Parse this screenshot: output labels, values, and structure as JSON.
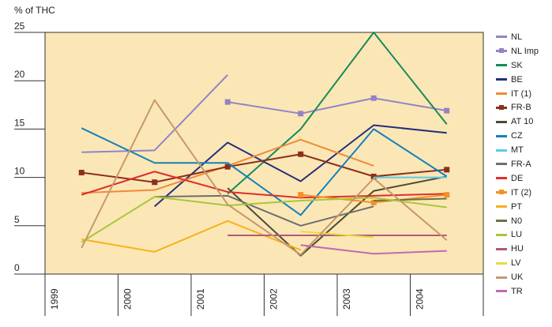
{
  "chart_data": {
    "type": "line",
    "title": "",
    "ylabel": "% of THC",
    "xlabel": "",
    "ylim": [
      0,
      25
    ],
    "yticks": [
      0,
      5,
      10,
      15,
      20,
      25
    ],
    "ytick_labels": [
      "0",
      "5",
      "10",
      "15",
      "20",
      "25"
    ],
    "categories": [
      "1999",
      "2000",
      "2001",
      "2002",
      "2003",
      "2004"
    ],
    "x_positions": [
      1999.5,
      2000.5,
      2001.5,
      2002.5,
      2003.5,
      2004.5
    ],
    "background": "#fbe7b5",
    "grid": false,
    "legend_position": "right",
    "series": [
      {
        "name": "NL",
        "color": "#9482c8",
        "marker": false,
        "values": [
          12.6,
          12.8,
          20.6,
          null,
          null,
          null
        ]
      },
      {
        "name": "NL Imp",
        "color": "#9482c8",
        "marker": true,
        "values": [
          null,
          null,
          17.8,
          16.6,
          18.2,
          16.9
        ]
      },
      {
        "name": "SK",
        "color": "#158a5c",
        "marker": false,
        "values": [
          null,
          null,
          8.3,
          15.0,
          25.0,
          15.5
        ]
      },
      {
        "name": "BE",
        "color": "#262e7e",
        "marker": false,
        "values": [
          null,
          7.0,
          13.6,
          9.6,
          15.4,
          14.6
        ]
      },
      {
        "name": "IT (1)",
        "color": "#f08a38",
        "marker": false,
        "values": [
          8.4,
          8.7,
          11.2,
          13.9,
          11.2,
          null
        ]
      },
      {
        "name": "FR-B",
        "color": "#8b2f1d",
        "marker": true,
        "values": [
          10.5,
          9.5,
          11.1,
          12.4,
          10.1,
          10.8
        ]
      },
      {
        "name": "AT 10",
        "color": "#4c4c35",
        "marker": false,
        "values": [
          null,
          null,
          8.9,
          1.9,
          8.6,
          10.1
        ]
      },
      {
        "name": "CZ",
        "color": "#1381bc",
        "marker": false,
        "values": [
          15.1,
          11.5,
          11.5,
          6.1,
          15.0,
          10.1
        ]
      },
      {
        "name": "MT",
        "color": "#5ccae8",
        "marker": false,
        "values": [
          null,
          null,
          null,
          null,
          10.0,
          10.0
        ]
      },
      {
        "name": "FR-A",
        "color": "#6e6e6e",
        "marker": false,
        "values": [
          null,
          8.0,
          8.1,
          5.0,
          7.0,
          null
        ]
      },
      {
        "name": "DE",
        "color": "#e02d2c",
        "marker": false,
        "values": [
          8.2,
          10.6,
          8.5,
          7.9,
          8.1,
          8.3
        ]
      },
      {
        "name": "IT (2)",
        "color": "#f58f27",
        "marker": true,
        "values": [
          null,
          null,
          null,
          8.2,
          7.4,
          8.2
        ]
      },
      {
        "name": "PT",
        "color": "#f8b11e",
        "marker": false,
        "values": [
          3.6,
          2.3,
          5.5,
          2.5,
          null,
          null
        ]
      },
      {
        "name": "N0",
        "color": "#707040",
        "marker": false,
        "values": [
          null,
          null,
          null,
          null,
          7.6,
          7.8
        ]
      },
      {
        "name": "LU",
        "color": "#a6c83a",
        "marker": false,
        "values": [
          3.3,
          8.0,
          7.1,
          7.6,
          7.9,
          6.9
        ]
      },
      {
        "name": "HU",
        "color": "#b3577a",
        "marker": false,
        "values": [
          null,
          null,
          4.0,
          4.0,
          4.0,
          4.0
        ]
      },
      {
        "name": "LV",
        "color": "#e8dc3b",
        "marker": false,
        "values": [
          null,
          null,
          null,
          4.4,
          3.8,
          null
        ]
      },
      {
        "name": "UK",
        "color": "#c6986c",
        "marker": false,
        "values": [
          2.7,
          18.0,
          7.2,
          2.0,
          9.9,
          3.5
        ]
      },
      {
        "name": "TR",
        "color": "#c06ab4",
        "marker": false,
        "values": [
          null,
          null,
          null,
          3.0,
          2.1,
          2.4
        ]
      }
    ]
  }
}
